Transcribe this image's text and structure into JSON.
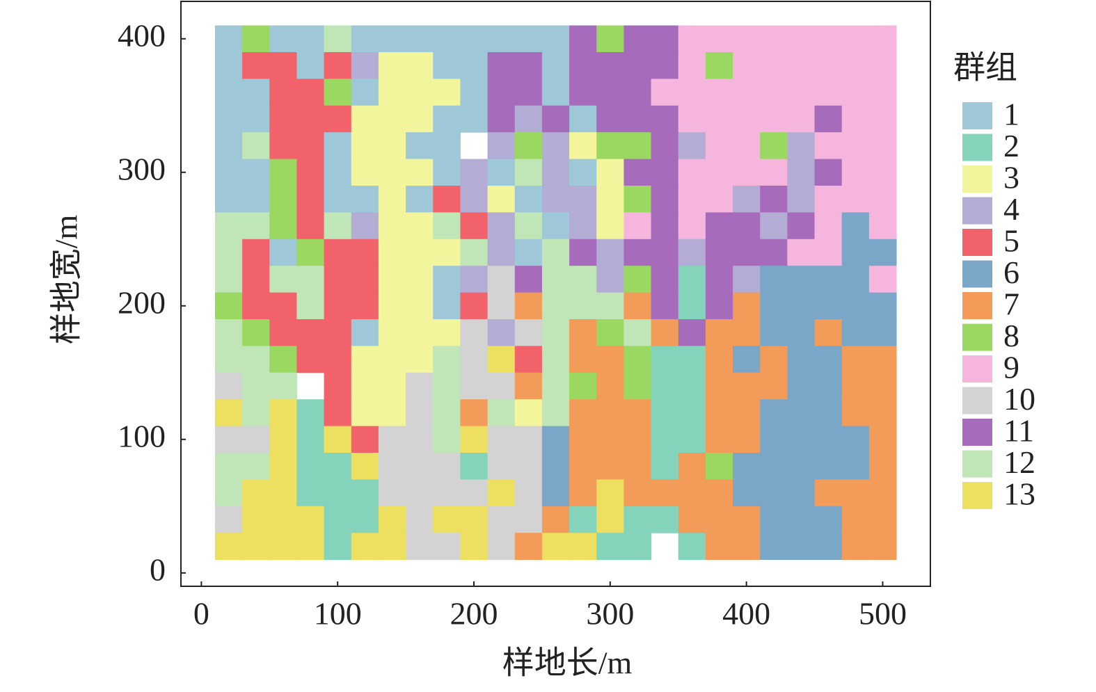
{
  "chart_data": {
    "type": "heatmap",
    "x_label": "样地长/m",
    "y_label": "样地宽/m",
    "legend_title": "群组",
    "x": [
      20,
      40,
      60,
      80,
      100,
      120,
      140,
      160,
      180,
      200,
      220,
      240,
      260,
      280,
      300,
      320,
      340,
      360,
      380,
      400,
      420,
      440,
      460,
      480,
      500
    ],
    "y": [
      400,
      380,
      360,
      340,
      320,
      300,
      280,
      260,
      240,
      220,
      200,
      180,
      160,
      140,
      120,
      100,
      80,
      60,
      40,
      20
    ],
    "z": [
      [
        1,
        8,
        1,
        1,
        12,
        1,
        1,
        1,
        1,
        1,
        1,
        1,
        1,
        11,
        8,
        11,
        11,
        9,
        9,
        9,
        9,
        9,
        9,
        9,
        9
      ],
      [
        1,
        5,
        5,
        1,
        5,
        4,
        3,
        3,
        1,
        1,
        11,
        11,
        1,
        11,
        11,
        11,
        11,
        9,
        8,
        9,
        9,
        9,
        9,
        9,
        9
      ],
      [
        1,
        1,
        5,
        5,
        8,
        1,
        3,
        3,
        3,
        1,
        11,
        11,
        1,
        11,
        11,
        11,
        9,
        9,
        9,
        9,
        9,
        9,
        9,
        9,
        9
      ],
      [
        1,
        1,
        5,
        5,
        5,
        3,
        3,
        3,
        1,
        1,
        11,
        4,
        11,
        1,
        11,
        11,
        11,
        9,
        9,
        9,
        9,
        9,
        11,
        9,
        9
      ],
      [
        1,
        12,
        5,
        5,
        1,
        3,
        3,
        1,
        1,
        null,
        4,
        8,
        4,
        3,
        8,
        8,
        11,
        4,
        9,
        9,
        8,
        4,
        9,
        9,
        9
      ],
      [
        1,
        1,
        8,
        5,
        1,
        3,
        3,
        3,
        1,
        4,
        1,
        12,
        4,
        1,
        3,
        11,
        11,
        9,
        9,
        9,
        9,
        4,
        11,
        9,
        9
      ],
      [
        1,
        1,
        8,
        5,
        1,
        1,
        3,
        1,
        5,
        4,
        3,
        1,
        4,
        4,
        3,
        8,
        11,
        9,
        9,
        4,
        11,
        4,
        9,
        9,
        9
      ],
      [
        12,
        12,
        8,
        5,
        12,
        4,
        3,
        3,
        12,
        5,
        4,
        12,
        1,
        4,
        3,
        9,
        11,
        9,
        11,
        11,
        4,
        11,
        9,
        6,
        9
      ],
      [
        12,
        5,
        1,
        8,
        5,
        5,
        3,
        3,
        3,
        12,
        4,
        1,
        12,
        11,
        4,
        11,
        11,
        4,
        11,
        11,
        11,
        9,
        9,
        6,
        6
      ],
      [
        12,
        5,
        12,
        12,
        5,
        5,
        3,
        3,
        1,
        4,
        10,
        11,
        12,
        12,
        4,
        8,
        11,
        2,
        11,
        4,
        6,
        6,
        6,
        6,
        9
      ],
      [
        8,
        5,
        5,
        12,
        5,
        5,
        3,
        3,
        1,
        5,
        10,
        7,
        12,
        12,
        12,
        7,
        11,
        2,
        11,
        7,
        6,
        6,
        6,
        6,
        6
      ],
      [
        12,
        8,
        5,
        5,
        5,
        1,
        3,
        3,
        3,
        10,
        4,
        10,
        12,
        7,
        8,
        12,
        7,
        11,
        7,
        7,
        6,
        6,
        7,
        6,
        6
      ],
      [
        12,
        12,
        8,
        5,
        5,
        3,
        3,
        3,
        12,
        10,
        13,
        5,
        12,
        7,
        7,
        8,
        2,
        2,
        7,
        6,
        7,
        6,
        6,
        7,
        7
      ],
      [
        10,
        12,
        12,
        null,
        5,
        3,
        3,
        10,
        12,
        10,
        10,
        7,
        12,
        8,
        7,
        8,
        2,
        2,
        7,
        7,
        7,
        6,
        6,
        7,
        7
      ],
      [
        13,
        12,
        13,
        2,
        5,
        3,
        3,
        10,
        12,
        7,
        12,
        3,
        12,
        7,
        7,
        7,
        2,
        2,
        7,
        7,
        6,
        6,
        6,
        7,
        7
      ],
      [
        10,
        10,
        13,
        2,
        13,
        5,
        10,
        10,
        12,
        13,
        10,
        10,
        6,
        7,
        7,
        7,
        2,
        2,
        7,
        7,
        6,
        6,
        6,
        6,
        7
      ],
      [
        12,
        12,
        13,
        2,
        2,
        13,
        10,
        10,
        10,
        2,
        10,
        10,
        6,
        7,
        7,
        7,
        2,
        7,
        8,
        6,
        6,
        6,
        6,
        6,
        7
      ],
      [
        12,
        13,
        13,
        2,
        2,
        2,
        10,
        10,
        10,
        10,
        13,
        10,
        6,
        7,
        13,
        7,
        7,
        7,
        7,
        6,
        6,
        6,
        7,
        7,
        7
      ],
      [
        10,
        13,
        13,
        13,
        2,
        2,
        13,
        10,
        13,
        13,
        10,
        10,
        7,
        2,
        13,
        2,
        2,
        7,
        7,
        7,
        6,
        6,
        6,
        7,
        7
      ],
      [
        13,
        13,
        13,
        13,
        2,
        13,
        13,
        10,
        10,
        13,
        10,
        7,
        13,
        13,
        2,
        2,
        null,
        2,
        7,
        7,
        6,
        6,
        6,
        7,
        7
      ]
    ],
    "groups": [
      {
        "name": "1",
        "color": "#9ec8d8"
      },
      {
        "name": "2",
        "color": "#84d3bb"
      },
      {
        "name": "3",
        "color": "#f3f59c"
      },
      {
        "name": "4",
        "color": "#b3acd4"
      },
      {
        "name": "5",
        "color": "#f1626a"
      },
      {
        "name": "6",
        "color": "#7aa6c8"
      },
      {
        "name": "7",
        "color": "#f39b58"
      },
      {
        "name": "8",
        "color": "#9bd862"
      },
      {
        "name": "9",
        "color": "#f5b5dc"
      },
      {
        "name": "10",
        "color": "#d3d3d3"
      },
      {
        "name": "11",
        "color": "#a66cbb"
      },
      {
        "name": "12",
        "color": "#c0e6b8"
      },
      {
        "name": "13",
        "color": "#eddf5f"
      }
    ],
    "xlim": [
      -15,
      535
    ],
    "ylim": [
      -10,
      428
    ],
    "xticks": [
      0,
      100,
      200,
      300,
      400,
      500
    ],
    "yticks": [
      0,
      100,
      200,
      300,
      400
    ]
  }
}
